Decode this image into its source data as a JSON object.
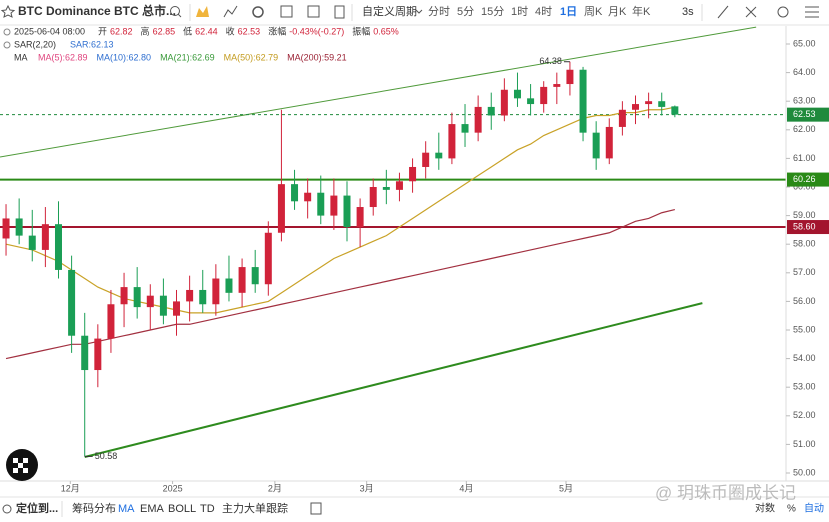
{
  "toolbar": {
    "title": "BTC Dominance BTC 总市...",
    "custom": "自定义周期",
    "periods": [
      "分时",
      "5分",
      "15分",
      "1时",
      "4时",
      "1日",
      "周K",
      "月K",
      "年K"
    ],
    "active_period": "1日",
    "refresh": "3s"
  },
  "legend": {
    "datetime": "2025-06-04 08:00",
    "fields": [
      {
        "label": "开",
        "value": "62.82"
      },
      {
        "label": "高",
        "value": "62.85"
      },
      {
        "label": "低",
        "value": "62.44"
      },
      {
        "label": "收",
        "value": "62.53"
      },
      {
        "label": "涨幅",
        "value": "-0.43%(-0.27)"
      },
      {
        "label": "振幅",
        "value": "0.65%"
      }
    ],
    "sar_name": "SAR(2,20)",
    "sar_value": "SAR:62.13",
    "ma_name": "MA",
    "ma": [
      {
        "text": "MA(5):62.89",
        "color": "#e0467f"
      },
      {
        "text": "MA(10):62.80",
        "color": "#2f6fd0"
      },
      {
        "text": "MA(21):62.69",
        "color": "#3a9a3a"
      },
      {
        "text": "MA(50):62.79",
        "color": "#c39b1e"
      },
      {
        "text": "MA(200):59.21",
        "color": "#9b2335"
      }
    ]
  },
  "chart_data": {
    "type": "candlestick",
    "up_color": "#d1233a",
    "down_color": "#1a9e55",
    "candles": [
      [
        58.2,
        59.4,
        57.6,
        58.9
      ],
      [
        58.9,
        59.6,
        58.0,
        58.3
      ],
      [
        58.3,
        59.2,
        57.4,
        57.8
      ],
      [
        57.8,
        59.3,
        57.2,
        58.7
      ],
      [
        58.7,
        59.5,
        56.8,
        57.1
      ],
      [
        57.1,
        57.6,
        54.2,
        54.8
      ],
      [
        54.8,
        55.6,
        50.58,
        53.6
      ],
      [
        53.6,
        55.2,
        53.0,
        54.7
      ],
      [
        54.7,
        56.4,
        54.2,
        55.9
      ],
      [
        55.9,
        57.0,
        55.1,
        56.5
      ],
      [
        56.5,
        57.2,
        55.4,
        55.8
      ],
      [
        55.8,
        56.6,
        55.0,
        56.2
      ],
      [
        56.2,
        56.8,
        55.2,
        55.5
      ],
      [
        55.5,
        56.4,
        54.8,
        56.0
      ],
      [
        56.0,
        56.9,
        55.3,
        56.4
      ],
      [
        56.4,
        57.1,
        55.6,
        55.9
      ],
      [
        55.9,
        57.3,
        55.5,
        56.8
      ],
      [
        56.8,
        57.6,
        56.0,
        56.3
      ],
      [
        56.3,
        57.5,
        55.8,
        57.2
      ],
      [
        57.2,
        57.8,
        56.3,
        56.6
      ],
      [
        56.6,
        58.8,
        56.2,
        58.4
      ],
      [
        58.4,
        62.7,
        58.1,
        60.1
      ],
      [
        60.1,
        60.6,
        59.2,
        59.5
      ],
      [
        59.5,
        60.3,
        58.9,
        59.8
      ],
      [
        59.8,
        60.4,
        58.7,
        59.0
      ],
      [
        59.0,
        60.3,
        58.5,
        59.7
      ],
      [
        59.7,
        60.2,
        58.1,
        58.6
      ],
      [
        58.6,
        59.6,
        57.9,
        59.3
      ],
      [
        59.3,
        60.3,
        59.0,
        60.0
      ],
      [
        60.0,
        60.6,
        59.4,
        59.9
      ],
      [
        59.9,
        60.5,
        59.5,
        60.2
      ],
      [
        60.2,
        61.0,
        59.8,
        60.7
      ],
      [
        60.7,
        61.6,
        60.3,
        61.2
      ],
      [
        61.2,
        61.9,
        60.6,
        61.0
      ],
      [
        61.0,
        62.6,
        60.8,
        62.2
      ],
      [
        62.2,
        62.9,
        61.4,
        61.9
      ],
      [
        61.9,
        63.2,
        61.6,
        62.8
      ],
      [
        62.8,
        63.3,
        62.0,
        62.5
      ],
      [
        62.5,
        63.8,
        62.3,
        63.4
      ],
      [
        63.4,
        64.0,
        62.8,
        63.1
      ],
      [
        63.1,
        63.6,
        62.5,
        62.9
      ],
      [
        62.9,
        63.7,
        62.6,
        63.5
      ],
      [
        63.5,
        64.0,
        62.9,
        63.6
      ],
      [
        63.6,
        64.38,
        63.2,
        64.1
      ],
      [
        64.1,
        64.2,
        61.6,
        61.9
      ],
      [
        61.9,
        62.3,
        60.6,
        61.0
      ],
      [
        61.0,
        62.4,
        60.8,
        62.1
      ],
      [
        62.1,
        63.0,
        61.8,
        62.7
      ],
      [
        62.7,
        63.2,
        62.2,
        62.9
      ],
      [
        62.9,
        63.3,
        62.4,
        63.0
      ],
      [
        63.0,
        63.3,
        62.5,
        62.8
      ],
      [
        62.82,
        62.85,
        62.44,
        62.53
      ]
    ],
    "series": [
      {
        "color": "#c9a227",
        "values": [
          58.0,
          57.9,
          57.8,
          57.6,
          57.4,
          57.1,
          56.8,
          56.5,
          56.3,
          56.1,
          56.0,
          55.9,
          55.8,
          55.7,
          55.6,
          55.6,
          55.6,
          55.7,
          55.8,
          55.9,
          56.0,
          56.3,
          56.6,
          56.9,
          57.2,
          57.5,
          57.7,
          57.9,
          58.1,
          58.3,
          58.6,
          58.9,
          59.2,
          59.5,
          59.8,
          60.1,
          60.4,
          60.7,
          61.0,
          61.3,
          61.5,
          61.8,
          62.0,
          62.2,
          62.4,
          62.5,
          62.5,
          62.6,
          62.6,
          62.7,
          62.7,
          62.79
        ]
      },
      {
        "color": "#a23040",
        "values": [
          54.0,
          54.1,
          54.2,
          54.3,
          54.4,
          54.5,
          54.5,
          54.6,
          54.7,
          54.8,
          54.9,
          55.0,
          55.1,
          55.2,
          55.2,
          55.3,
          55.4,
          55.5,
          55.6,
          55.7,
          55.8,
          55.9,
          56.0,
          56.1,
          56.2,
          56.3,
          56.4,
          56.5,
          56.6,
          56.7,
          56.8,
          56.9,
          57.0,
          57.1,
          57.2,
          57.3,
          57.4,
          57.5,
          57.6,
          57.7,
          57.8,
          57.9,
          58.0,
          58.1,
          58.2,
          58.3,
          58.4,
          58.6,
          58.8,
          58.9,
          59.1,
          59.21
        ]
      }
    ],
    "trendlines": [
      {
        "color": "#4f9a3a",
        "x": [
          -0.46,
          57.2
        ],
        "y": [
          61.05,
          65.59
        ]
      },
      {
        "color": "#2e8b1e",
        "x": [
          6,
          53.1
        ],
        "y": [
          50.56,
          55.94
        ]
      }
    ],
    "levels": [
      {
        "value": 62.53,
        "label": "62.53",
        "color": "#1f8a3c",
        "dashed": true
      },
      {
        "value": 60.26,
        "label": "60.26",
        "color": "#2a8a17"
      },
      {
        "value": 58.6,
        "label": "58.60",
        "color": "#a3152e"
      }
    ],
    "max_label": 64.38,
    "min_label": 50.58,
    "xlim": [
      -0.46,
      59.4
    ],
    "ylim": [
      50,
      65
    ],
    "xticks": [
      {
        "value": 4.9,
        "label": "12月"
      },
      {
        "value": 12.7,
        "label": "2025"
      },
      {
        "value": 20.5,
        "label": "2月"
      },
      {
        "value": 27.5,
        "label": "3月"
      },
      {
        "value": 35.1,
        "label": "4月"
      },
      {
        "value": 42.7,
        "label": "5月"
      }
    ],
    "yticks": [
      {
        "value": 65,
        "label": "65.00"
      },
      {
        "value": 64,
        "label": "64.00"
      },
      {
        "value": 63,
        "label": "63.00"
      },
      {
        "value": 62,
        "label": "62.00"
      },
      {
        "value": 61,
        "label": "61.00"
      },
      {
        "value": 60,
        "label": "60.00"
      },
      {
        "value": 59,
        "label": "59.00"
      },
      {
        "value": 58,
        "label": "58.00"
      },
      {
        "value": 57,
        "label": "57.00"
      },
      {
        "value": 56,
        "label": "56.00"
      },
      {
        "value": 55,
        "label": "55.00"
      },
      {
        "value": 54,
        "label": "54.00"
      },
      {
        "value": 53,
        "label": "53.00"
      },
      {
        "value": 52,
        "label": "52.00"
      },
      {
        "value": 51,
        "label": "51.00"
      },
      {
        "value": 50,
        "label": "50.00"
      }
    ]
  },
  "bottom_bar": {
    "locate": "定位到...",
    "tools": [
      "筹码分布",
      "MA",
      "EMA",
      "BOLL",
      "TD",
      "主力大单跟踪"
    ],
    "active_tool": "MA",
    "right": [
      "对数",
      "%",
      "自动"
    ],
    "active_right": "自动",
    "watermark": "@ 玥珠币圈成长记"
  }
}
